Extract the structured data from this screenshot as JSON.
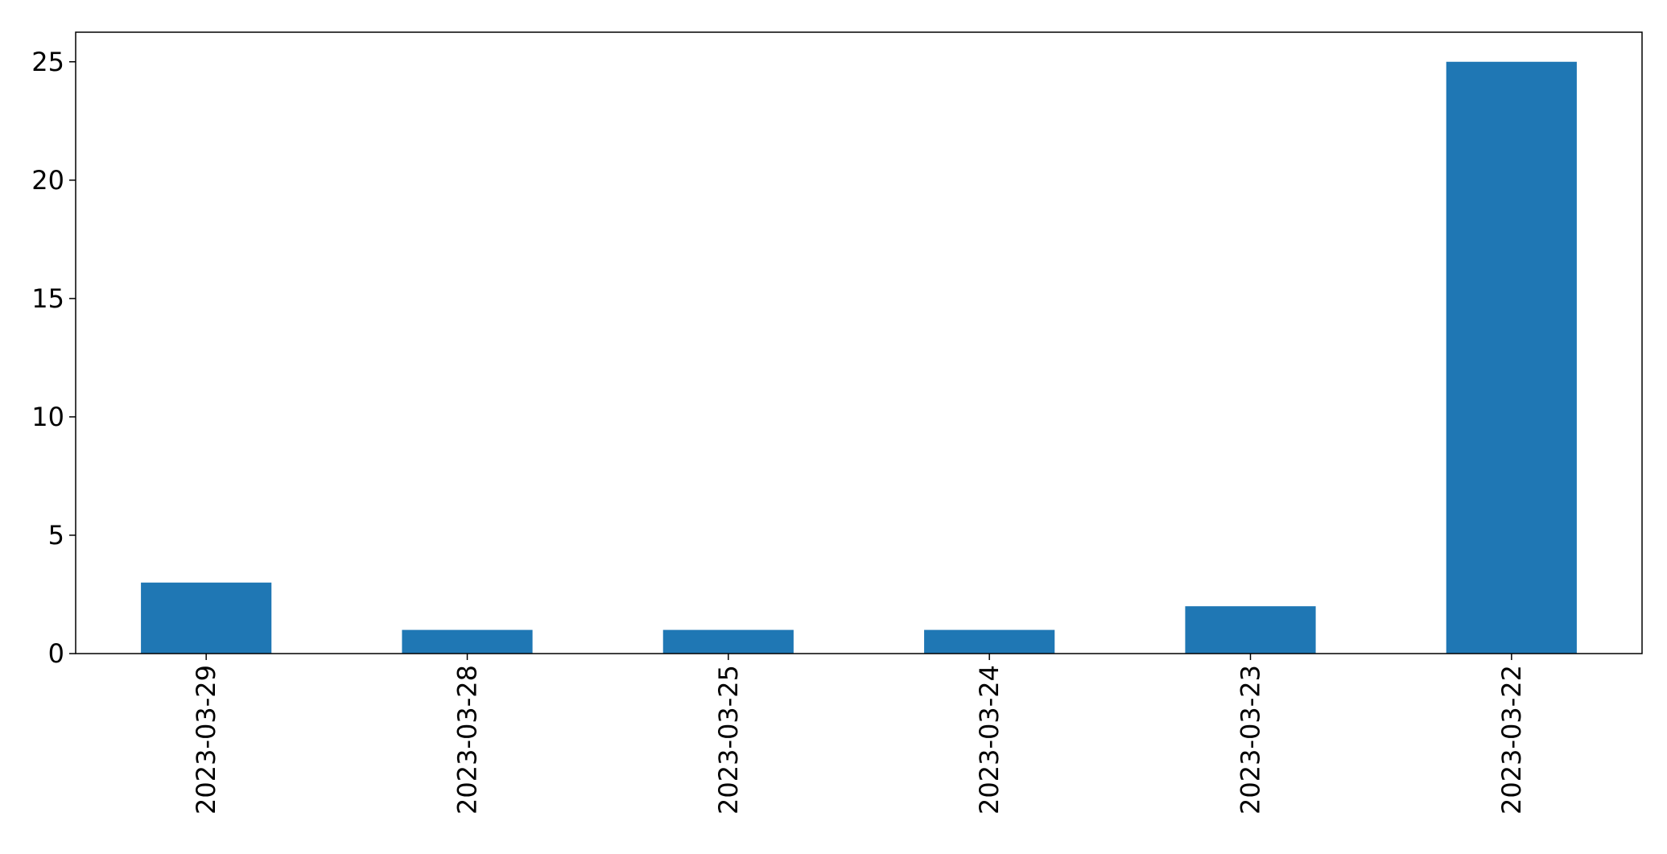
{
  "chart_data": {
    "type": "bar",
    "categories": [
      "2023-03-29",
      "2023-03-28",
      "2023-03-25",
      "2023-03-24",
      "2023-03-23",
      "2023-03-22"
    ],
    "values": [
      3,
      1,
      1,
      1,
      2,
      25
    ],
    "title": "",
    "xlabel": "",
    "ylabel": "",
    "ylim": [
      0,
      26.25
    ],
    "yticks": [
      0,
      5,
      10,
      15,
      20,
      25
    ],
    "grid": false,
    "legend": "none",
    "bar_color": "#1f77b4"
  }
}
